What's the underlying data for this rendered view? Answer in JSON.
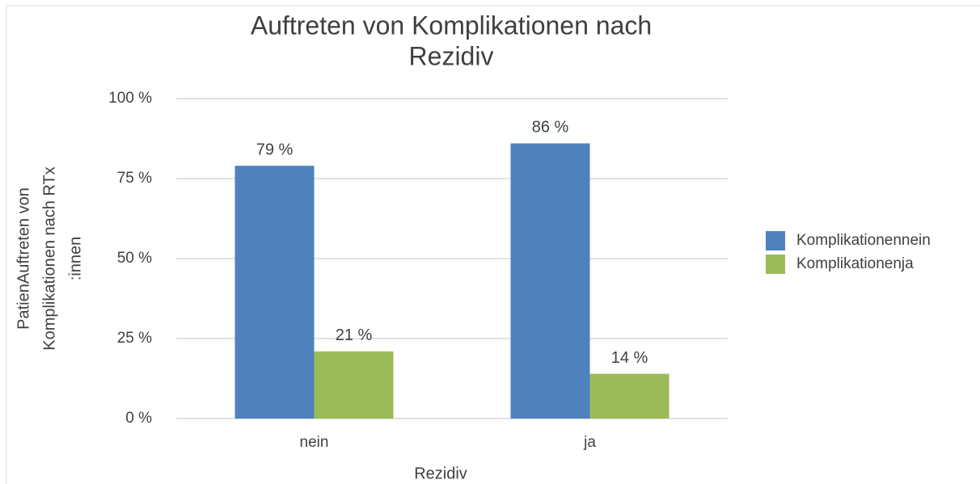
{
  "chart_data": {
    "type": "bar",
    "title": [
      "Auftreten von Komplikationen nach",
      "Rezidiv"
    ],
    "xlabel": "Rezidiv",
    "ylabel": [
      "PatienAuftreten von",
      "Komplikationen nach RTx",
      ":innen"
    ],
    "categories": [
      "nein",
      "ja"
    ],
    "series": [
      {
        "name": "Komplikationennein",
        "color": "#4f81bd",
        "values": [
          79,
          86
        ],
        "value_labels": [
          "79 %",
          "86 %"
        ]
      },
      {
        "name": "Komplikationenja",
        "color": "#9bbb59",
        "values": [
          21,
          14
        ],
        "value_labels": [
          "21 %",
          "14 %"
        ]
      }
    ],
    "ylim": [
      0,
      100
    ],
    "yticks": [
      {
        "value": 0,
        "label": "0 %"
      },
      {
        "value": 25,
        "label": "25 %"
      },
      {
        "value": 50,
        "label": "50 %"
      },
      {
        "value": 75,
        "label": "75 %"
      },
      {
        "value": 100,
        "label": "100 %"
      }
    ],
    "grid": true,
    "legend": "right"
  }
}
